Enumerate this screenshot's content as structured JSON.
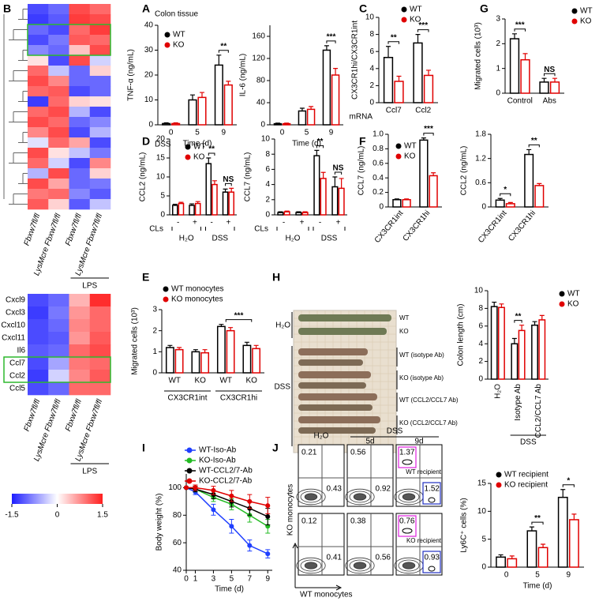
{
  "panels": [
    "B",
    "A",
    "C",
    "G",
    "D",
    "F",
    "E",
    "H",
    "I",
    "J"
  ],
  "chart_data": [
    {
      "type": "heatmap",
      "columns": [
        "Fbxw7fl/fl",
        "LysMcre Fbxw7fl/fl",
        "Fbxw7fl/fl",
        "LysMcre Fbxw7fl/fl"
      ],
      "column_groups": [
        {
          "label": "LPS",
          "span": [
            2,
            3
          ]
        }
      ],
      "clim": [
        -1.5,
        1.5
      ],
      "values": [
        [
          -1.2,
          -1.0,
          1.2,
          1.0
        ],
        [
          -1.3,
          -1.1,
          1.3,
          1.2
        ],
        [
          -1.0,
          -1.2,
          1.0,
          1.3
        ],
        [
          -1.2,
          -0.9,
          1.1,
          1.0
        ],
        [
          -0.8,
          -1.0,
          0.4,
          1.2
        ],
        [
          0.2,
          -1.2,
          1.2,
          -0.3
        ],
        [
          1.0,
          -0.4,
          -1.0,
          0.3
        ],
        [
          1.2,
          0.8,
          -1.0,
          -1.0
        ],
        [
          1.0,
          1.1,
          -1.2,
          -1.0
        ],
        [
          -1.3,
          1.0,
          0.3,
          0.2
        ],
        [
          1.0,
          1.2,
          -0.5,
          -1.2
        ],
        [
          1.2,
          1.0,
          -1.0,
          -0.8
        ],
        [
          0.8,
          1.2,
          -1.2,
          -0.5
        ],
        [
          -0.2,
          1.0,
          0.6,
          -1.2
        ],
        [
          1.2,
          0.2,
          -0.4,
          -0.9
        ],
        [
          1.0,
          -0.3,
          -1.2,
          0.8
        ],
        [
          -0.5,
          1.2,
          -1.0,
          0.3
        ],
        [
          1.2,
          0.6,
          -1.0,
          -0.9
        ],
        [
          0.9,
          1.0,
          -0.8,
          -1.1
        ],
        [
          1.1,
          0.3,
          -1.1,
          -0.4
        ]
      ]
    },
    {
      "type": "heatmap",
      "rows": [
        "Cxcl9",
        "Cxcl3",
        "Cxcl10",
        "Cxcl11",
        "Il6",
        "Ccl7",
        "Ccl2",
        "Ccl5"
      ],
      "highlight_rows": [
        5,
        6
      ],
      "highlight_color": "#e00000",
      "columns": [
        "Fbxw7fl/fl",
        "LysMcre Fbxw7fl/fl",
        "Fbxw7fl/fl",
        "LysMcre Fbxw7fl/fl"
      ],
      "column_groups": [
        {
          "label": "LPS",
          "span": [
            2,
            3
          ]
        }
      ],
      "clim": [
        -1.5,
        1.5
      ],
      "cticks": [
        -1.5,
        0,
        1.5
      ],
      "values": [
        [
          -1.2,
          -1.0,
          0.5,
          1.4
        ],
        [
          -1.3,
          -0.9,
          0.7,
          1.0
        ],
        [
          -1.2,
          -1.0,
          0.8,
          1.0
        ],
        [
          -1.2,
          -1.1,
          0.7,
          1.1
        ],
        [
          -1.1,
          -1.0,
          1.0,
          1.2
        ],
        [
          -1.2,
          -0.6,
          0.9,
          1.0
        ],
        [
          -1.3,
          -0.3,
          0.8,
          1.1
        ],
        [
          -1.2,
          -1.0,
          1.0,
          1.0
        ]
      ]
    },
    {
      "type": "bar",
      "title": "Colon tissue",
      "categories": [
        "0",
        "5",
        "9"
      ],
      "x_label": "Time (d)",
      "y_label": "TNF-α (ng/mL)",
      "ylim": [
        0,
        40
      ],
      "yticks": [
        0,
        10,
        20,
        30,
        40
      ],
      "series": [
        {
          "name": "WT",
          "color": "#000000",
          "values": [
            0.5,
            10,
            24
          ],
          "errors": [
            0.3,
            2,
            4
          ]
        },
        {
          "name": "KO",
          "color": "#e00000",
          "values": [
            0.5,
            11,
            16
          ],
          "errors": [
            0.3,
            2,
            1.5
          ]
        }
      ],
      "significance": [
        {
          "at": [
            2
          ],
          "text": "**"
        }
      ]
    },
    {
      "type": "bar",
      "categories": [
        "0",
        "5",
        "9"
      ],
      "x_label": "Time (d)",
      "y_label": "IL-6 (ng/mL)",
      "ylim": [
        0,
        180
      ],
      "yticks": [
        0,
        40,
        80,
        120,
        160
      ],
      "series": [
        {
          "color": "#000000",
          "values": [
            2,
            25,
            135
          ],
          "errors": [
            1,
            5,
            8
          ]
        },
        {
          "color": "#e00000",
          "values": [
            2,
            28,
            90
          ],
          "errors": [
            1,
            5,
            12
          ]
        }
      ],
      "significance": [
        {
          "at": [
            2
          ],
          "text": "***"
        }
      ]
    },
    {
      "type": "bar",
      "categories": [
        "Ccl7",
        "Ccl2"
      ],
      "x_label": "mRNA",
      "y_label": "CX3CR1hi/CX3CR1int",
      "ylim": [
        0,
        10
      ],
      "yticks": [
        0,
        2,
        4,
        6,
        8,
        10
      ],
      "series": [
        {
          "name": "WT",
          "color": "#000000",
          "values": [
            5.3,
            7
          ],
          "errors": [
            1.3,
            1
          ]
        },
        {
          "name": "KO",
          "color": "#e00000",
          "values": [
            2.5,
            3.2
          ],
          "errors": [
            0.6,
            0.6
          ]
        }
      ],
      "significance": [
        {
          "at": [
            0
          ],
          "text": "**"
        },
        {
          "at": [
            1
          ],
          "text": "***"
        }
      ]
    },
    {
      "type": "bar",
      "categories": [
        "Control",
        "Abs"
      ],
      "y_label": "Migrated cells (10³)",
      "ylim": [
        0,
        3
      ],
      "yticks": [
        0,
        1,
        2,
        3
      ],
      "series": [
        {
          "name": "WT",
          "color": "#000000",
          "values": [
            2.2,
            0.45
          ],
          "errors": [
            0.2,
            0.15
          ]
        },
        {
          "name": "KO",
          "color": "#e00000",
          "values": [
            1.35,
            0.45
          ],
          "errors": [
            0.25,
            0.15
          ]
        }
      ],
      "significance": [
        {
          "at": [
            0
          ],
          "text": "***"
        },
        {
          "at": [
            1
          ],
          "text": "NS"
        }
      ]
    },
    {
      "type": "bar",
      "title": "DSS",
      "categories": [
        "-",
        "+",
        "-",
        "+"
      ],
      "x_label": "CLs",
      "y_label": "CCL2 (ng/mL)",
      "groups": [
        {
          "label": "H₂O",
          "span": [
            0,
            1
          ]
        },
        {
          "label": "DSS",
          "span": [
            2,
            3
          ]
        }
      ],
      "ylim": [
        0,
        20
      ],
      "yticks": [
        0,
        5,
        10,
        15,
        20
      ],
      "series": [
        {
          "name": "WT",
          "color": "#000000",
          "values": [
            2.5,
            2.5,
            13.5,
            6
          ],
          "errors": [
            0.3,
            0.4,
            1.5,
            0.8
          ]
        },
        {
          "name": "KO",
          "color": "#e00000",
          "values": [
            3,
            3,
            8,
            6
          ],
          "errors": [
            0.3,
            0.5,
            1,
            1
          ]
        }
      ],
      "significance": [
        {
          "at": [
            2
          ],
          "text": "**"
        },
        {
          "at": [
            3
          ],
          "text": "NS"
        }
      ]
    },
    {
      "type": "bar",
      "categories": [
        "-",
        "+",
        "-",
        "+"
      ],
      "x_label": "CLs",
      "y_label": "CCL7 (ng/mL)",
      "groups": [
        {
          "label": "H₂O",
          "span": [
            0,
            1
          ]
        },
        {
          "label": "DSS",
          "span": [
            2,
            3
          ]
        }
      ],
      "ylim": [
        0,
        10
      ],
      "yticks": [
        0,
        2,
        4,
        6,
        8,
        10
      ],
      "series": [
        {
          "color": "#000000",
          "values": [
            0.3,
            0.3,
            7.8,
            3.7
          ],
          "errors": [
            0.1,
            0.1,
            0.7,
            1.3
          ]
        },
        {
          "color": "#e00000",
          "values": [
            0.4,
            0.3,
            4.8,
            3.5
          ],
          "errors": [
            0.1,
            0.1,
            0.8,
            1.3
          ]
        }
      ],
      "significance": [
        {
          "at": [
            2
          ],
          "text": "**"
        },
        {
          "at": [
            3
          ],
          "text": "NS"
        }
      ]
    },
    {
      "type": "bar",
      "categories": [
        "CX3CR1int",
        "CX3CR1hi"
      ],
      "y_label": "CCL7 (ng/mL)",
      "ylim": [
        0,
        1
      ],
      "yticks": [
        0,
        0.2,
        0.4,
        0.6,
        0.8,
        {
          "value": 1,
          "label": "1.0"
        }
      ],
      "series": [
        {
          "name": "WT",
          "color": "#000000",
          "values": [
            0.1,
            0.92
          ],
          "errors": [
            0.01,
            0.03
          ]
        },
        {
          "name": "KO",
          "color": "#e00000",
          "values": [
            0.1,
            0.43
          ],
          "errors": [
            0.01,
            0.04
          ]
        }
      ],
      "significance": [
        {
          "at": [
            1
          ],
          "text": "***"
        }
      ]
    },
    {
      "type": "bar",
      "categories": [
        "CX3CR1int",
        "CX3CR1hi"
      ],
      "y_label": "CCL2 (ng/mL)",
      "ylim": [
        0,
        1.8
      ],
      "yticks": [
        0,
        0.6,
        1.2,
        1.8
      ],
      "series": [
        {
          "color": "#000000",
          "values": [
            0.17,
            1.3
          ],
          "errors": [
            0.04,
            0.12
          ]
        },
        {
          "color": "#e00000",
          "values": [
            0.08,
            0.53
          ],
          "errors": [
            0.03,
            0.05
          ]
        }
      ],
      "significance": [
        {
          "at": [
            0
          ],
          "text": "*"
        },
        {
          "at": [
            1
          ],
          "text": "**"
        }
      ]
    },
    {
      "type": "bar",
      "categories": [
        "WT",
        "KO",
        "WT",
        "KO"
      ],
      "y_label": "Migrated cells (10³)",
      "groups": [
        {
          "label": "CX3CR1int",
          "span": [
            0,
            1
          ]
        },
        {
          "label": "CX3CR1hi",
          "span": [
            2,
            3
          ]
        }
      ],
      "ylim": [
        0,
        3
      ],
      "yticks": [
        0,
        1,
        2,
        3
      ],
      "series": [
        {
          "name": "WT monocytes",
          "color": "#000000",
          "values": [
            1.2,
            1.0,
            2.2,
            1.3
          ],
          "errors": [
            0.1,
            0.1,
            0.1,
            0.15
          ]
        },
        {
          "name": "KO monocytes",
          "color": "#e00000",
          "values": [
            1.1,
            0.95,
            2.0,
            1.15
          ],
          "errors": [
            0.1,
            0.15,
            0.15,
            0.15
          ]
        }
      ],
      "significance": [
        {
          "at": [
            2,
            3
          ],
          "text": "***"
        }
      ]
    },
    {
      "type": "bar",
      "categories": [
        "H₂O",
        "Isotype Ab",
        "CCL2/CCL7 Ab"
      ],
      "y_label": "Colon length (cm)",
      "groups": [
        {
          "label": "DSS",
          "span": [
            1,
            2
          ]
        }
      ],
      "ylim": [
        0,
        10
      ],
      "yticks": [
        0,
        2,
        4,
        6,
        8,
        10
      ],
      "series": [
        {
          "name": "WT",
          "color": "#000000",
          "values": [
            8.2,
            4.0,
            6.1
          ],
          "errors": [
            0.5,
            0.6,
            0.4
          ]
        },
        {
          "name": "KO",
          "color": "#e00000",
          "values": [
            8.1,
            5.5,
            6.7
          ],
          "errors": [
            0.4,
            0.6,
            0.5
          ]
        }
      ],
      "significance": [
        {
          "at": [
            1
          ],
          "text": "**"
        }
      ]
    },
    {
      "type": "line",
      "x": [
        0,
        1,
        3,
        5,
        7,
        9
      ],
      "xlim": [
        0,
        9.5
      ],
      "xticks": [
        0,
        1,
        3,
        5,
        7,
        9
      ],
      "x_label": "Time (d)",
      "y_label": "Body weight (%)",
      "ylim": [
        40,
        110
      ],
      "yticks": [
        40,
        60,
        80,
        100
      ],
      "series": [
        {
          "name": "WT-Iso-Ab",
          "color": "#1f3fff",
          "values": [
            100,
            97,
            84,
            72,
            58,
            52
          ],
          "errors": [
            0,
            2,
            4,
            5,
            4,
            3
          ]
        },
        {
          "name": "KO-Iso-Ab",
          "color": "#22bb22",
          "values": [
            100,
            99,
            93,
            88,
            80,
            72
          ],
          "errors": [
            0,
            2,
            3,
            4,
            5,
            5
          ]
        },
        {
          "name": "WT-CCL2/7-Ab",
          "color": "#000000",
          "values": [
            100,
            99,
            95,
            90,
            85,
            79
          ],
          "errors": [
            0,
            2,
            3,
            4,
            5,
            6
          ]
        },
        {
          "name": "KO-CCL2/7-Ab",
          "color": "#e00000",
          "values": [
            100,
            100,
            98,
            94,
            90,
            87
          ],
          "errors": [
            0,
            2,
            3,
            4,
            5,
            6
          ]
        }
      ]
    },
    {
      "type": "bar",
      "categories": [
        "0",
        "5",
        "9"
      ],
      "x_label": "Time (d)",
      "y_label": "Ly6C⁺ cells (%)",
      "ylim": [
        0,
        15
      ],
      "yticks": [
        0,
        5,
        10,
        15
      ],
      "series": [
        {
          "name": "WT recipient",
          "color": "#000000",
          "values": [
            1.8,
            6.5,
            12.5
          ],
          "errors": [
            0.4,
            0.7,
            1.4
          ]
        },
        {
          "name": "KO recipient",
          "color": "#e00000",
          "values": [
            1.5,
            3.5,
            8.5
          ],
          "errors": [
            0.5,
            0.6,
            1.0
          ]
        }
      ],
      "significance": [
        {
          "at": [
            1
          ],
          "text": "**"
        },
        {
          "at": [
            2
          ],
          "text": "*"
        }
      ]
    }
  ],
  "photo_h": {
    "left_labels": [
      "H₂O",
      "DSS"
    ],
    "lane_labels": [
      "WT",
      "KO",
      "WT (isotype Ab)",
      "KO (isotype Ab)",
      "WT (CCL2/CCL7 Ab)",
      "KO (CCL2/CCL7 Ab)"
    ]
  },
  "flow_j": {
    "columns": [
      "H₂O",
      "5d",
      "9d"
    ],
    "column_group": "DSS",
    "row_labels": [
      "WT recipient",
      "KO recipient"
    ],
    "y_axis": "KO monocytes",
    "x_axis": "WT monocytes",
    "gates": [
      [
        [
          0.21,
          0.43
        ],
        [
          0.56,
          0.92
        ],
        [
          1.37,
          1.52
        ]
      ],
      [
        [
          0.12,
          0.41
        ],
        [
          0.38,
          0.56
        ],
        [
          0.76,
          0.93
        ]
      ]
    ]
  }
}
